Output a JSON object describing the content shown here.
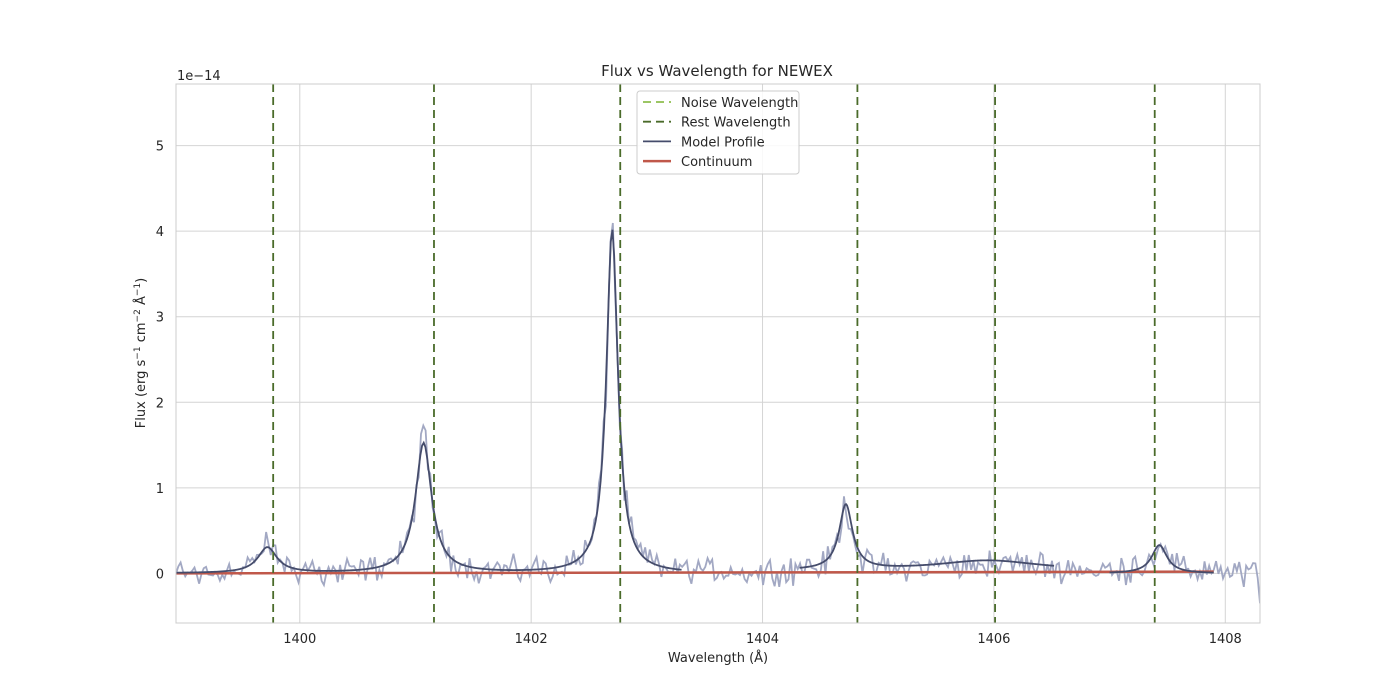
{
  "chart_data": {
    "type": "line",
    "title": "Flux vs Wavelength for NEWEX",
    "xlabel": "Wavelength (Å)",
    "ylabel": "Flux (erg s",
    "ylabel_sup1": "−1",
    "ylabel_mid": " cm",
    "ylabel_sup2": "−2",
    "ylabel_mid2": " Å",
    "ylabel_sup3": "−1",
    "ylabel_end": ")",
    "offset_text": "1e−14",
    "xlim": [
      1398.93,
      1408.3
    ],
    "ylim": [
      -0.58,
      5.72
    ],
    "y_scale_factor": 1e-14,
    "xticks": [
      1400,
      1402,
      1404,
      1406,
      1408
    ],
    "xtick_labels": [
      "1400",
      "1402",
      "1404",
      "1406",
      "1408"
    ],
    "yticks": [
      0,
      1,
      2,
      3,
      4,
      5
    ],
    "ytick_labels": [
      "0",
      "1",
      "2",
      "3",
      "4",
      "5"
    ],
    "grid": true,
    "legend_position": "top-center",
    "colors": {
      "observed": "#a2a8c3",
      "noise_line": "#8fbf4e",
      "rest_line": "#4a6b2a",
      "model": "#454c6b",
      "continuum": "#c0584a",
      "grid": "#d4d4d4",
      "frame": "#cccccc"
    },
    "legend": [
      {
        "label": "Noise Wavelength",
        "style": "dashed",
        "color": "#8fbf4e"
      },
      {
        "label": "Rest Wavelength",
        "style": "dashed",
        "color": "#4a6b2a"
      },
      {
        "label": "Model Profile",
        "style": "solid",
        "color": "#454c6b"
      },
      {
        "label": "Continuum",
        "style": "solid-thick",
        "color": "#c0584a"
      }
    ],
    "rest_wavelengths": [
      1399.77,
      1401.16,
      1402.77,
      1404.82,
      1406.01,
      1407.39
    ],
    "continuum": {
      "x": [
        1398.93,
        1407.9
      ],
      "y": [
        0.0,
        0.02
      ]
    },
    "model_segments": [
      {
        "x_range": [
          1398.93,
          1403.3
        ],
        "components": [
          {
            "center": 1399.72,
            "amp": 0.3,
            "width": 0.1
          },
          {
            "center": 1401.07,
            "amp": 1.52,
            "width": 0.085
          },
          {
            "center": 1402.7,
            "amp": 4.02,
            "width": 0.06
          }
        ]
      },
      {
        "x_range": [
          1404.32,
          1406.52
        ],
        "components": [
          {
            "center": 1404.72,
            "amp": 0.76,
            "width": 0.07
          },
          {
            "center": 1405.95,
            "amp": 0.12,
            "width": 0.55
          }
        ],
        "baseline": 0.03
      },
      {
        "x_range": [
          1407.0,
          1407.9
        ],
        "components": [
          {
            "center": 1407.43,
            "amp": 0.33,
            "width": 0.08
          }
        ]
      }
    ],
    "observed": {
      "x_start": 1398.93,
      "x_end": 1408.3,
      "n_points": 470,
      "noise_amplitude": 0.2,
      "end_value": -0.35
    }
  }
}
